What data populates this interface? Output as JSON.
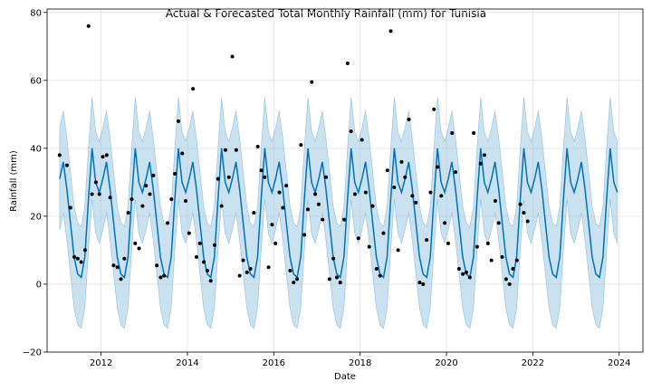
{
  "chart_data": {
    "type": "line",
    "title": "Actual & Forecasted Total Monthly Rainfall (mm) for Tunisia",
    "xlabel": "Date",
    "ylabel": "Rainfall (mm)",
    "xlim": [
      2010.75,
      2024.55
    ],
    "ylim": [
      -20,
      81
    ],
    "x_ticks": [
      2012,
      2014,
      2016,
      2018,
      2020,
      2022,
      2024
    ],
    "y_ticks": [
      -20,
      0,
      20,
      40,
      60,
      80
    ],
    "grid": true,
    "colors": {
      "forecast_line": "#0072b2",
      "uncertainty_band": "#9ecae1",
      "actual_points": "#000000"
    },
    "forecast_profile": {
      "years": [
        2011,
        2012,
        2013,
        2014,
        2015,
        2016,
        2017,
        2018,
        2019,
        2020,
        2021,
        2022,
        2023
      ],
      "monthly_mean": [
        31,
        36,
        28,
        18,
        8,
        3,
        2,
        8,
        25,
        40,
        30,
        27
      ],
      "band_half_width": 15
    },
    "actual_points": [
      [
        2011.04,
        38
      ],
      [
        2011.21,
        35
      ],
      [
        2011.29,
        22.5
      ],
      [
        2011.38,
        8
      ],
      [
        2011.46,
        7.5
      ],
      [
        2011.54,
        6.5
      ],
      [
        2011.63,
        10
      ],
      [
        2011.71,
        76
      ],
      [
        2011.79,
        26.5
      ],
      [
        2011.88,
        30
      ],
      [
        2011.96,
        26.5
      ],
      [
        2012.04,
        37.5
      ],
      [
        2012.13,
        38
      ],
      [
        2012.21,
        25.5
      ],
      [
        2012.29,
        5.5
      ],
      [
        2012.38,
        5
      ],
      [
        2012.46,
        1.5
      ],
      [
        2012.54,
        7.5
      ],
      [
        2012.63,
        21
      ],
      [
        2012.71,
        25
      ],
      [
        2012.79,
        12
      ],
      [
        2012.88,
        10.5
      ],
      [
        2012.96,
        23
      ],
      [
        2013.04,
        29
      ],
      [
        2013.13,
        26.5
      ],
      [
        2013.21,
        32
      ],
      [
        2013.29,
        5.5
      ],
      [
        2013.38,
        2
      ],
      [
        2013.46,
        2.5
      ],
      [
        2013.54,
        18
      ],
      [
        2013.63,
        25
      ],
      [
        2013.71,
        32.5
      ],
      [
        2013.79,
        48
      ],
      [
        2013.88,
        38.5
      ],
      [
        2013.96,
        24.5
      ],
      [
        2014.04,
        15
      ],
      [
        2014.13,
        57.5
      ],
      [
        2014.21,
        8
      ],
      [
        2014.29,
        12
      ],
      [
        2014.38,
        6.5
      ],
      [
        2014.46,
        4
      ],
      [
        2014.54,
        1
      ],
      [
        2014.63,
        11.5
      ],
      [
        2014.71,
        31
      ],
      [
        2014.79,
        23
      ],
      [
        2014.88,
        39.5
      ],
      [
        2014.96,
        31.5
      ],
      [
        2015.04,
        67
      ],
      [
        2015.13,
        39.5
      ],
      [
        2015.21,
        2.5
      ],
      [
        2015.29,
        7
      ],
      [
        2015.38,
        3.5
      ],
      [
        2015.46,
        4.5
      ],
      [
        2015.54,
        21
      ],
      [
        2015.63,
        40.5
      ],
      [
        2015.71,
        33.5
      ],
      [
        2015.79,
        31.5
      ],
      [
        2015.88,
        5
      ],
      [
        2015.96,
        17.5
      ],
      [
        2016.04,
        12
      ],
      [
        2016.13,
        27
      ],
      [
        2016.21,
        22.5
      ],
      [
        2016.29,
        29
      ],
      [
        2016.38,
        4
      ],
      [
        2016.46,
        0.5
      ],
      [
        2016.54,
        1.5
      ],
      [
        2016.63,
        41
      ],
      [
        2016.71,
        14.5
      ],
      [
        2016.79,
        22
      ],
      [
        2016.88,
        59.5
      ],
      [
        2016.96,
        26.5
      ],
      [
        2017.04,
        23.5
      ],
      [
        2017.13,
        19
      ],
      [
        2017.21,
        31.5
      ],
      [
        2017.29,
        1.5
      ],
      [
        2017.38,
        7.5
      ],
      [
        2017.46,
        2
      ],
      [
        2017.54,
        0.5
      ],
      [
        2017.63,
        19
      ],
      [
        2017.71,
        65
      ],
      [
        2017.79,
        45
      ],
      [
        2017.88,
        26.5
      ],
      [
        2017.96,
        13.5
      ],
      [
        2018.04,
        42.5
      ],
      [
        2018.13,
        27
      ],
      [
        2018.21,
        11
      ],
      [
        2018.29,
        23
      ],
      [
        2018.38,
        4.5
      ],
      [
        2018.46,
        2.5
      ],
      [
        2018.54,
        15
      ],
      [
        2018.63,
        33.5
      ],
      [
        2018.71,
        74.5
      ],
      [
        2018.79,
        28.5
      ],
      [
        2018.88,
        10
      ],
      [
        2018.96,
        36
      ],
      [
        2019.04,
        31.5
      ],
      [
        2019.13,
        48.5
      ],
      [
        2019.21,
        26
      ],
      [
        2019.29,
        24
      ],
      [
        2019.38,
        0.5
      ],
      [
        2019.46,
        0
      ],
      [
        2019.54,
        13
      ],
      [
        2019.63,
        27
      ],
      [
        2019.71,
        51.5
      ],
      [
        2019.79,
        34.5
      ],
      [
        2019.88,
        26
      ],
      [
        2019.96,
        18
      ],
      [
        2020.04,
        12
      ],
      [
        2020.13,
        44.5
      ],
      [
        2020.21,
        33
      ],
      [
        2020.29,
        4.5
      ],
      [
        2020.38,
        3
      ],
      [
        2020.46,
        3.5
      ],
      [
        2020.54,
        2
      ],
      [
        2020.63,
        44.5
      ],
      [
        2020.71,
        11
      ],
      [
        2020.79,
        35.5
      ],
      [
        2020.88,
        38
      ],
      [
        2020.96,
        12
      ],
      [
        2021.04,
        7
      ],
      [
        2021.13,
        24.5
      ],
      [
        2021.21,
        18
      ],
      [
        2021.29,
        8
      ],
      [
        2021.38,
        1.5
      ],
      [
        2021.46,
        0
      ],
      [
        2021.54,
        4.5
      ],
      [
        2021.63,
        7
      ],
      [
        2021.71,
        23.5
      ],
      [
        2021.79,
        21
      ],
      [
        2021.88,
        18.5
      ]
    ]
  }
}
